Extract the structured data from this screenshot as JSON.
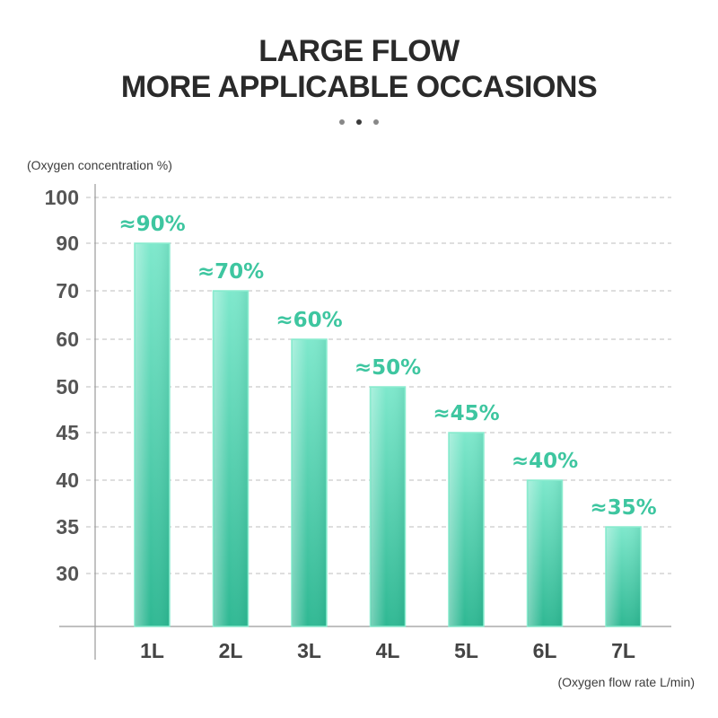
{
  "header": {
    "title_line1": "LARGE FLOW",
    "title_line2": "MORE APPLICABLE OCCASIONS",
    "carousel_dots": 3,
    "active_dot": 1
  },
  "chart_data": {
    "type": "bar",
    "title": "LARGE FLOW MORE APPLICABLE OCCASIONS",
    "ylabel": "(Oxygen concentration %)",
    "xlabel": "(Oxygen flow rate L/min)",
    "categories": [
      "1L",
      "2L",
      "3L",
      "4L",
      "5L",
      "6L",
      "7L"
    ],
    "values": [
      90,
      70,
      60,
      50,
      45,
      40,
      35
    ],
    "value_labels": [
      "≈90%",
      "≈70%",
      "≈60%",
      "≈50%",
      "≈45%",
      "≈40%",
      "≈35%"
    ],
    "y_ticks": [
      100,
      90,
      70,
      60,
      50,
      45,
      40,
      35,
      30
    ],
    "grid": true,
    "legend": "none",
    "colors": {
      "bar_top": "#7ee8cc",
      "bar_bottom": "#2fb893",
      "bar_edge": "#8ceccf",
      "value_label": "#3ec6a0",
      "grid": "#bdbdbd",
      "axis": "#9a9a9a"
    }
  }
}
